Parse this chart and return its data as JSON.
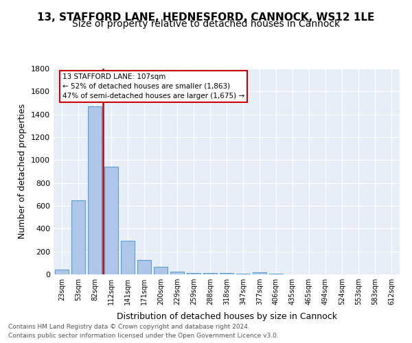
{
  "title1": "13, STAFFORD LANE, HEDNESFORD, CANNOCK, WS12 1LE",
  "title2": "Size of property relative to detached houses in Cannock",
  "xlabel": "Distribution of detached houses by size in Cannock",
  "ylabel": "Number of detached properties",
  "categories": [
    "23sqm",
    "53sqm",
    "82sqm",
    "112sqm",
    "141sqm",
    "171sqm",
    "200sqm",
    "229sqm",
    "259sqm",
    "288sqm",
    "318sqm",
    "347sqm",
    "377sqm",
    "406sqm",
    "435sqm",
    "465sqm",
    "494sqm",
    "524sqm",
    "553sqm",
    "583sqm",
    "612sqm"
  ],
  "values": [
    40,
    650,
    1470,
    940,
    295,
    125,
    65,
    25,
    15,
    12,
    10,
    8,
    20,
    5,
    3,
    2,
    2,
    1,
    1,
    1,
    1
  ],
  "bar_color": "#aec6e8",
  "bar_edge_color": "#5a9fd4",
  "annotation_line1": "13 STAFFORD LANE: 107sqm",
  "annotation_line2": "← 52% of detached houses are smaller (1,863)",
  "annotation_line3": "47% of semi-detached houses are larger (1,675) →",
  "vline_color": "#cc0000",
  "annotation_box_edge": "#cc0000",
  "footer1": "Contains HM Land Registry data © Crown copyright and database right 2024.",
  "footer2": "Contains public sector information licensed under the Open Government Licence v3.0.",
  "ylim": [
    0,
    1800
  ],
  "yticks": [
    0,
    200,
    400,
    600,
    800,
    1000,
    1200,
    1400,
    1600,
    1800
  ],
  "bg_color": "#e8eef7",
  "fig_bg": "#ffffff",
  "title1_fontsize": 11,
  "title2_fontsize": 10,
  "xlabel_fontsize": 9,
  "ylabel_fontsize": 9
}
